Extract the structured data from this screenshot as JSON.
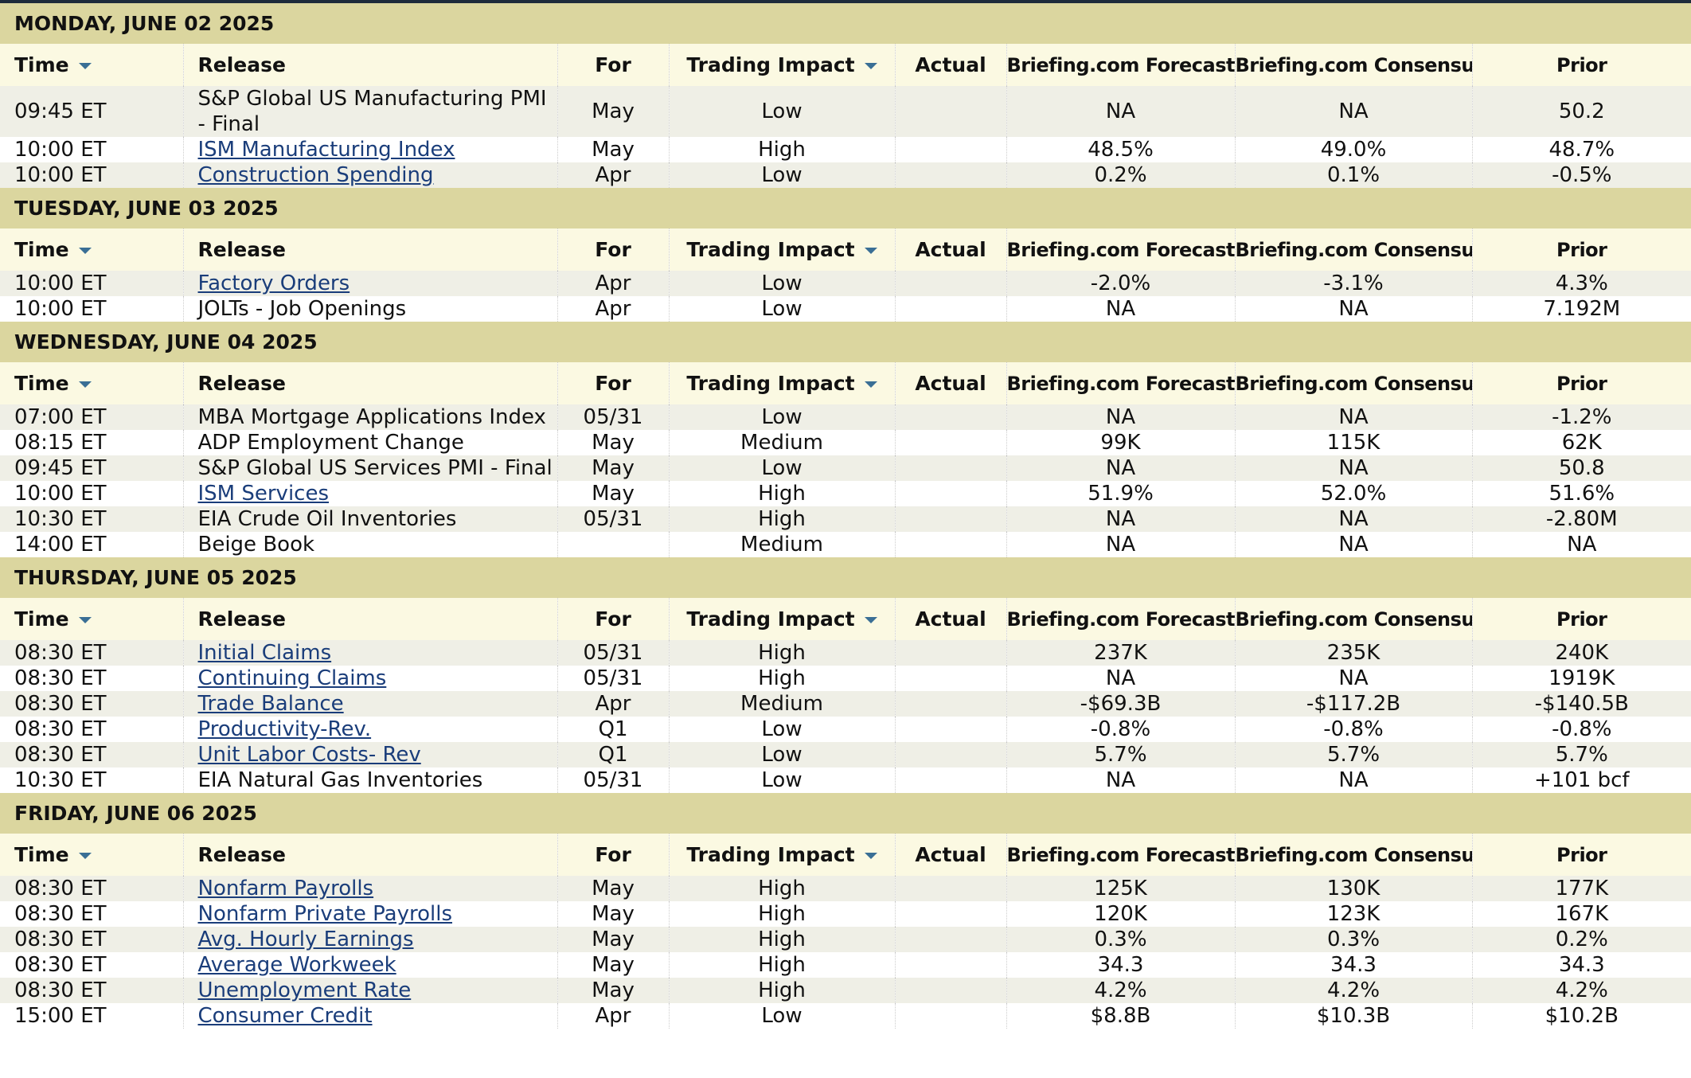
{
  "columns": [
    "Time",
    "Release",
    "For",
    "Trading Impact",
    "Actual",
    "Briefing.com Forecast",
    "Briefing.com Consensus",
    "Prior"
  ],
  "days": [
    {
      "title": "MONDAY, JUNE 02 2025",
      "rows": [
        {
          "time": "09:45 ET",
          "release": "S&P Global US Manufacturing PMI - Final",
          "link": false,
          "for": "May",
          "impact": "Low",
          "forecast": "NA",
          "consensus": "NA",
          "prior": "50.2"
        },
        {
          "time": "10:00 ET",
          "release": "ISM Manufacturing Index",
          "link": true,
          "for": "May",
          "impact": "High",
          "forecast": "48.5%",
          "consensus": "49.0%",
          "prior": "48.7%"
        },
        {
          "time": "10:00 ET",
          "release": "Construction Spending",
          "link": true,
          "for": "Apr",
          "impact": "Low",
          "forecast": "0.2%",
          "consensus": "0.1%",
          "prior": "-0.5%"
        }
      ]
    },
    {
      "title": "TUESDAY, JUNE 03 2025",
      "rows": [
        {
          "time": "10:00 ET",
          "release": "Factory Orders",
          "link": true,
          "for": "Apr",
          "impact": "Low",
          "forecast": "-2.0%",
          "consensus": "-3.1%",
          "prior": "4.3%"
        },
        {
          "time": "10:00 ET",
          "release": "JOLTs - Job Openings",
          "link": false,
          "for": "Apr",
          "impact": "Low",
          "forecast": "NA",
          "consensus": "NA",
          "prior": "7.192M"
        }
      ]
    },
    {
      "title": "WEDNESDAY, JUNE 04 2025",
      "rows": [
        {
          "time": "07:00 ET",
          "release": "MBA Mortgage Applications Index",
          "link": false,
          "for": "05/31",
          "impact": "Low",
          "forecast": "NA",
          "consensus": "NA",
          "prior": "-1.2%"
        },
        {
          "time": "08:15 ET",
          "release": "ADP Employment Change",
          "link": false,
          "for": "May",
          "impact": "Medium",
          "forecast": "99K",
          "consensus": "115K",
          "prior": "62K"
        },
        {
          "time": "09:45 ET",
          "release": "S&P Global US Services PMI - Final",
          "link": false,
          "for": "May",
          "impact": "Low",
          "forecast": "NA",
          "consensus": "NA",
          "prior": "50.8"
        },
        {
          "time": "10:00 ET",
          "release": "ISM Services",
          "link": true,
          "for": "May",
          "impact": "High",
          "forecast": "51.9%",
          "consensus": "52.0%",
          "prior": "51.6%"
        },
        {
          "time": "10:30 ET",
          "release": "EIA Crude Oil Inventories",
          "link": false,
          "for": "05/31",
          "impact": "High",
          "forecast": "NA",
          "consensus": "NA",
          "prior": "-2.80M"
        },
        {
          "time": "14:00 ET",
          "release": "Beige Book",
          "link": false,
          "impact": "Medium",
          "forecast": "NA",
          "consensus": "NA",
          "prior": "NA"
        }
      ]
    },
    {
      "title": "THURSDAY, JUNE 05 2025",
      "rows": [
        {
          "time": "08:30 ET",
          "release": "Initial Claims",
          "link": true,
          "for": "05/31",
          "impact": "High",
          "forecast": "237K",
          "consensus": "235K",
          "prior": "240K"
        },
        {
          "time": "08:30 ET",
          "release": "Continuing Claims",
          "link": true,
          "for": "05/31",
          "impact": "High",
          "forecast": "NA",
          "consensus": "NA",
          "prior": "1919K"
        },
        {
          "time": "08:30 ET",
          "release": "Trade Balance",
          "link": true,
          "for": "Apr",
          "impact": "Medium",
          "forecast": "-$69.3B",
          "consensus": "-$117.2B",
          "prior": "-$140.5B"
        },
        {
          "time": "08:30 ET",
          "release": "Productivity-Rev.",
          "link": true,
          "for": "Q1",
          "impact": "Low",
          "forecast": "-0.8%",
          "consensus": "-0.8%",
          "prior": "-0.8%"
        },
        {
          "time": "08:30 ET",
          "release": "Unit Labor Costs- Rev",
          "link": true,
          "for": "Q1",
          "impact": "Low",
          "forecast": "5.7%",
          "consensus": "5.7%",
          "prior": "5.7%"
        },
        {
          "time": "10:30 ET",
          "release": "EIA Natural Gas Inventories",
          "link": false,
          "for": "05/31",
          "impact": "Low",
          "forecast": "NA",
          "consensus": "NA",
          "prior": "+101 bcf"
        }
      ]
    },
    {
      "title": "FRIDAY, JUNE 06 2025",
      "rows": [
        {
          "time": "08:30 ET",
          "release": "Nonfarm Payrolls",
          "link": true,
          "for": "May",
          "impact": "High",
          "forecast": "125K",
          "consensus": "130K",
          "prior": "177K"
        },
        {
          "time": "08:30 ET",
          "release": "Nonfarm Private Payrolls",
          "link": true,
          "for": "May",
          "impact": "High",
          "forecast": "120K",
          "consensus": "123K",
          "prior": "167K"
        },
        {
          "time": "08:30 ET",
          "release": "Avg. Hourly Earnings",
          "link": true,
          "for": "May",
          "impact": "High",
          "forecast": "0.3%",
          "consensus": "0.3%",
          "prior": "0.2%"
        },
        {
          "time": "08:30 ET",
          "release": "Average Workweek",
          "link": true,
          "for": "May",
          "impact": "High",
          "forecast": "34.3",
          "consensus": "34.3",
          "prior": "34.3"
        },
        {
          "time": "08:30 ET",
          "release": "Unemployment Rate",
          "link": true,
          "for": "May",
          "impact": "High",
          "forecast": "4.2%",
          "consensus": "4.2%",
          "prior": "4.2%"
        },
        {
          "time": "15:00 ET",
          "release": "Consumer Credit",
          "link": true,
          "for": "Apr",
          "impact": "Low",
          "forecast": "$8.8B",
          "consensus": "$10.3B",
          "prior": "$10.2B"
        }
      ]
    }
  ]
}
